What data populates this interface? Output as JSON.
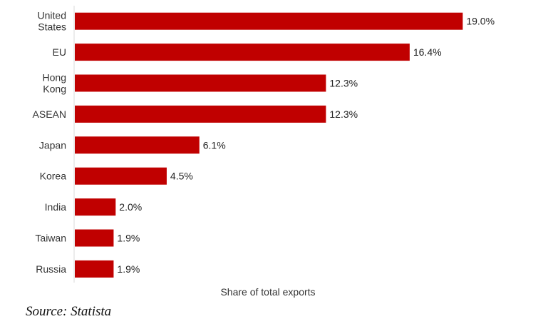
{
  "chart_data": {
    "type": "bar",
    "orientation": "horizontal",
    "categories": [
      "United States",
      "EU",
      "Hong Kong",
      "ASEAN",
      "Japan",
      "Korea",
      "India",
      "Taiwan",
      "Russia"
    ],
    "category_lines": [
      [
        "United",
        "States"
      ],
      [
        "EU"
      ],
      [
        "Hong",
        "Kong"
      ],
      [
        "ASEAN"
      ],
      [
        "Japan"
      ],
      [
        "Korea"
      ],
      [
        "India"
      ],
      [
        "Taiwan"
      ],
      [
        "Russia"
      ]
    ],
    "values": [
      19.0,
      16.4,
      12.3,
      12.3,
      6.1,
      4.5,
      2.0,
      1.9,
      1.9
    ],
    "value_labels": [
      "19.0%",
      "16.4%",
      "12.3%",
      "12.3%",
      "6.1%",
      "4.5%",
      "2.0%",
      "1.9%",
      "1.9%"
    ],
    "xlabel": "Share of total exports",
    "xlim": [
      0,
      20
    ],
    "grid": false,
    "bar_color": "#c00000"
  },
  "source": "Source: Statista"
}
